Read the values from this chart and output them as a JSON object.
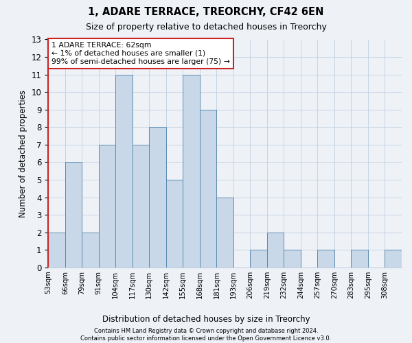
{
  "title": "1, ADARE TERRACE, TREORCHY, CF42 6EN",
  "subtitle": "Size of property relative to detached houses in Treorchy",
  "xlabel": "Distribution of detached houses by size in Treorchy",
  "ylabel": "Number of detached properties",
  "bar_labels": [
    "53sqm",
    "66sqm",
    "79sqm",
    "91sqm",
    "104sqm",
    "117sqm",
    "130sqm",
    "142sqm",
    "155sqm",
    "168sqm",
    "181sqm",
    "193sqm",
    "206sqm",
    "219sqm",
    "232sqm",
    "244sqm",
    "257sqm",
    "270sqm",
    "283sqm",
    "295sqm",
    "308sqm"
  ],
  "bar_heights": [
    2,
    6,
    2,
    7,
    11,
    7,
    8,
    5,
    11,
    9,
    4,
    0,
    1,
    2,
    1,
    0,
    1,
    0,
    1,
    0,
    1
  ],
  "bar_color": "#c8d8e8",
  "bar_edge_color": "#5a8ab0",
  "highlight_color": "#cc2222",
  "ylim": [
    0,
    13
  ],
  "yticks": [
    0,
    1,
    2,
    3,
    4,
    5,
    6,
    7,
    8,
    9,
    10,
    11,
    12,
    13
  ],
  "annotation_text": "1 ADARE TERRACE: 62sqm\n← 1% of detached houses are smaller (1)\n99% of semi-detached houses are larger (75) →",
  "footer_text": "Contains HM Land Registry data © Crown copyright and database right 2024.\nContains public sector information licensed under the Open Government Licence v3.0.",
  "background_color": "#eef2f7",
  "grid_color": "#c0cfe0"
}
